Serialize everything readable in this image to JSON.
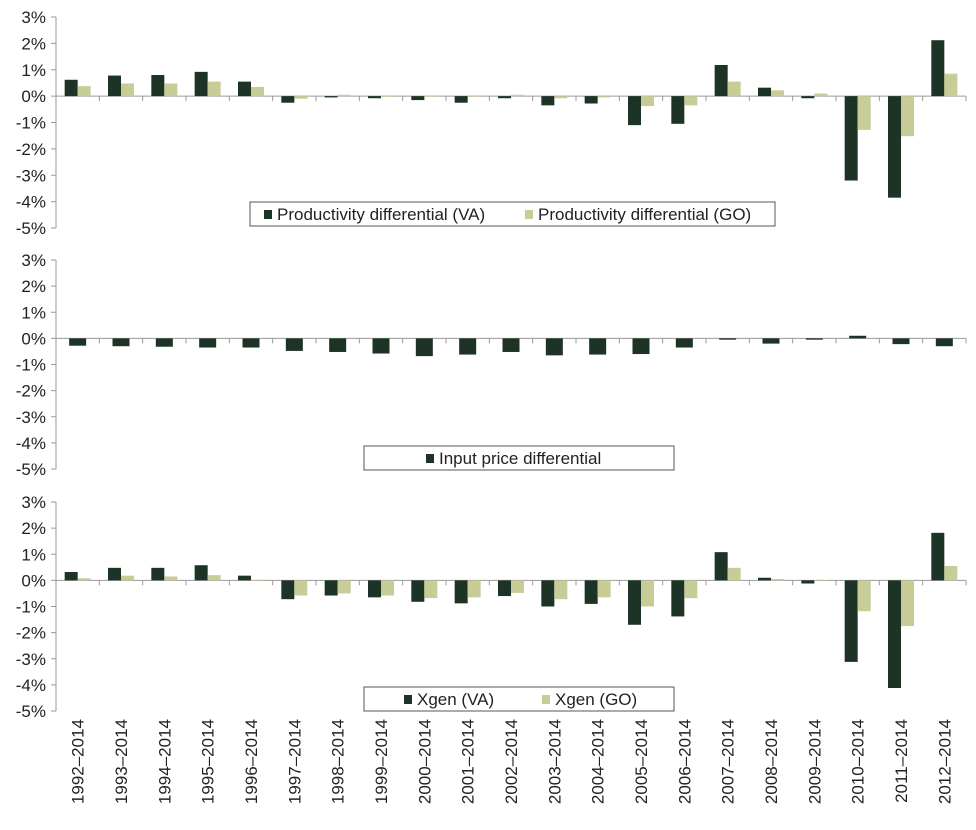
{
  "colors": {
    "dark": "#1c3326",
    "light": "#c8cc96",
    "axis": "#9a9a9a",
    "grid": "#cfcfcf"
  },
  "chart_data": [
    {
      "type": "bar",
      "categories": [
        "1992–2014",
        "1993–2014",
        "1994–2014",
        "1995–2014",
        "1996–2014",
        "1997–2014",
        "1998–2014",
        "1999–2014",
        "2000–2014",
        "2001–2014",
        "2002–2014",
        "2003–2014",
        "2004–2014",
        "2005–2014",
        "2006–2014",
        "2007–2014",
        "2008–2014",
        "2009–2014",
        "2010–2014",
        "2011–2014",
        "2012–2014"
      ],
      "series": [
        {
          "name": "Productivity differential (VA)",
          "color": "#1c3326",
          "values": [
            0.62,
            0.78,
            0.8,
            0.92,
            0.55,
            -0.25,
            -0.05,
            -0.08,
            -0.15,
            -0.25,
            -0.08,
            -0.35,
            -0.28,
            -1.1,
            -1.05,
            1.18,
            0.32,
            -0.08,
            -3.2,
            -3.85,
            2.12
          ]
        },
        {
          "name": "Productivity differential (GO)",
          "color": "#c8cc96",
          "values": [
            0.38,
            0.48,
            0.48,
            0.55,
            0.35,
            -0.1,
            0.05,
            0.0,
            0.0,
            -0.02,
            0.05,
            -0.08,
            -0.05,
            -0.38,
            -0.35,
            0.55,
            0.22,
            0.1,
            -1.28,
            -1.52,
            0.85
          ]
        }
      ],
      "ylim": [
        -5,
        3
      ],
      "ytick_labels": [
        "3%",
        "2%",
        "1%",
        "0%",
        "-1%",
        "-2%",
        "-3%",
        "-4%",
        "-5%"
      ],
      "legend_placement": "bottom-center"
    },
    {
      "type": "bar",
      "categories": [
        "1992–2014",
        "1993–2014",
        "1994–2014",
        "1995–2014",
        "1996–2014",
        "1997–2014",
        "1998–2014",
        "1999–2014",
        "2000–2014",
        "2001–2014",
        "2002–2014",
        "2003–2014",
        "2004–2014",
        "2005–2014",
        "2006–2014",
        "2007–2014",
        "2008–2014",
        "2009–2014",
        "2010–2014",
        "2011–2014",
        "2012–2014"
      ],
      "series": [
        {
          "name": "Input price differential",
          "color": "#1c3326",
          "values": [
            -0.28,
            -0.3,
            -0.32,
            -0.35,
            -0.35,
            -0.48,
            -0.52,
            -0.58,
            -0.68,
            -0.62,
            -0.52,
            -0.65,
            -0.62,
            -0.6,
            -0.35,
            -0.05,
            -0.2,
            -0.05,
            0.1,
            -0.22,
            -0.3
          ]
        }
      ],
      "ylim": [
        -5,
        3
      ],
      "ytick_labels": [
        "3%",
        "2%",
        "1%",
        "0%",
        "-1%",
        "-2%",
        "-3%",
        "-4%",
        "-5%"
      ],
      "legend_placement": "bottom-center"
    },
    {
      "type": "bar",
      "categories": [
        "1992–2014",
        "1993–2014",
        "1994–2014",
        "1995–2014",
        "1996–2014",
        "1997–2014",
        "1998–2014",
        "1999–2014",
        "2000–2014",
        "2001–2014",
        "2002–2014",
        "2003–2014",
        "2004–2014",
        "2005–2014",
        "2006–2014",
        "2007–2014",
        "2008–2014",
        "2009–2014",
        "2010–2014",
        "2011–2014",
        "2012–2014"
      ],
      "series": [
        {
          "name": "Xgen (VA)",
          "color": "#1c3326",
          "values": [
            0.32,
            0.48,
            0.48,
            0.58,
            0.18,
            -0.72,
            -0.58,
            -0.65,
            -0.82,
            -0.88,
            -0.6,
            -1.0,
            -0.9,
            -1.7,
            -1.38,
            1.08,
            0.1,
            -0.12,
            -3.12,
            -4.12,
            1.82
          ]
        },
        {
          "name": "Xgen (GO)",
          "color": "#c8cc96",
          "values": [
            0.08,
            0.18,
            0.15,
            0.2,
            0.0,
            -0.58,
            -0.5,
            -0.58,
            -0.68,
            -0.65,
            -0.48,
            -0.72,
            -0.65,
            -1.0,
            -0.68,
            0.48,
            0.05,
            0.0,
            -1.18,
            -1.75,
            0.55
          ]
        }
      ],
      "ylim": [
        -5,
        3
      ],
      "ytick_labels": [
        "3%",
        "2%",
        "1%",
        "0%",
        "-1%",
        "-2%",
        "-3%",
        "-4%",
        "-5%"
      ],
      "legend_placement": "bottom-center"
    }
  ]
}
